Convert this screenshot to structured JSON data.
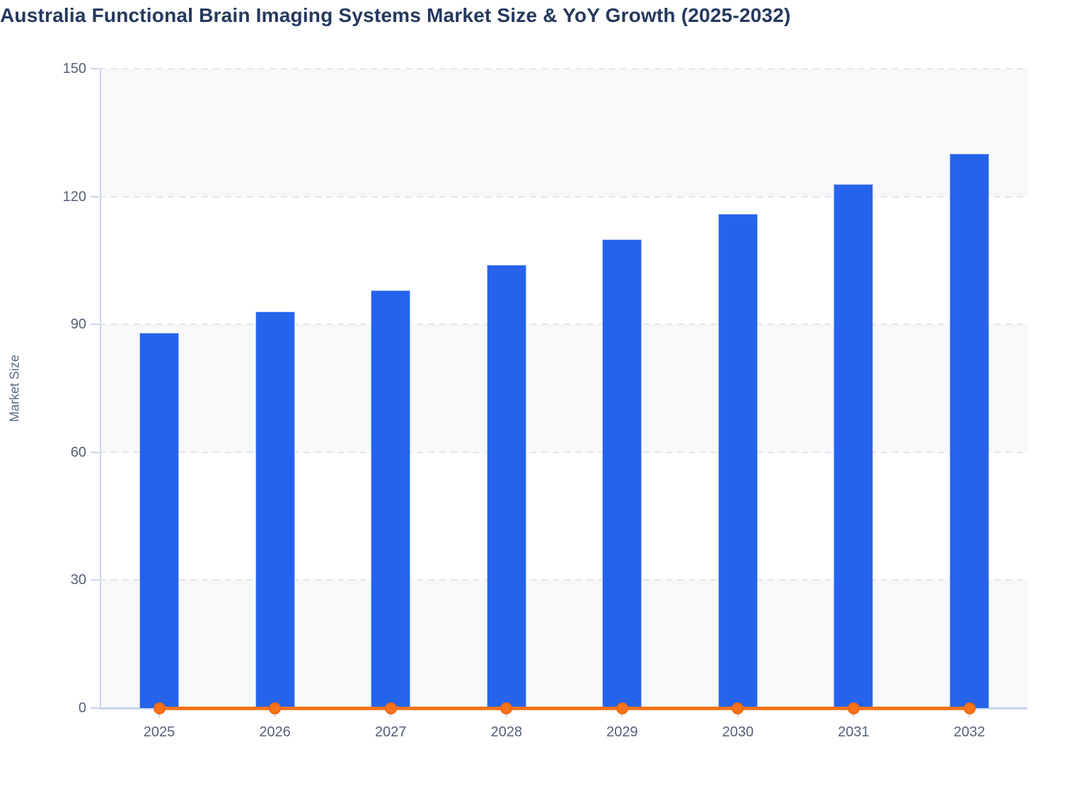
{
  "header": {
    "title": "Australia Functional Brain Imaging Systems Market Size & YoY Growth (2025-2032)"
  },
  "chart_data": {
    "type": "bar",
    "title": "Australia Functional Brain Imaging Systems Market Size & YoY Growth (2025-2032)",
    "categories": [
      "2025",
      "2026",
      "2027",
      "2028",
      "2029",
      "2030",
      "2031",
      "2032"
    ],
    "series": [
      {
        "name": "Market Size",
        "type": "bar",
        "color": "#2563eb",
        "values": [
          88,
          93,
          98,
          104,
          110,
          116,
          123,
          130
        ]
      },
      {
        "name": "YoY Growth",
        "type": "line",
        "color": "#f97316",
        "values": [
          0,
          0,
          0,
          0,
          0,
          0,
          0,
          0
        ]
      }
    ],
    "xlabel": "",
    "ylabel": "Market Size",
    "ylim": [
      0,
      150
    ],
    "yticks": [
      0,
      30,
      60,
      90,
      120,
      150
    ],
    "legend": "none",
    "grid": "horizontal-dashed",
    "row_stripes": "alternating light-gray bands between gridlines",
    "line_markers": "filled circles at each category on the zero line"
  },
  "colors": {
    "bar": "#2563eb",
    "bar_stroke": "#b6c6f3",
    "line": "#f97316",
    "marker_stroke": "#ef680e",
    "title_text": "#24395e",
    "axis_text": "#556179",
    "axis_line": "#cdd4e8",
    "axis_bottom_line": "#c9d4ec",
    "gridline": "#e3e6ee",
    "stripe": "#f6f8fa",
    "background": "#ffffff"
  }
}
